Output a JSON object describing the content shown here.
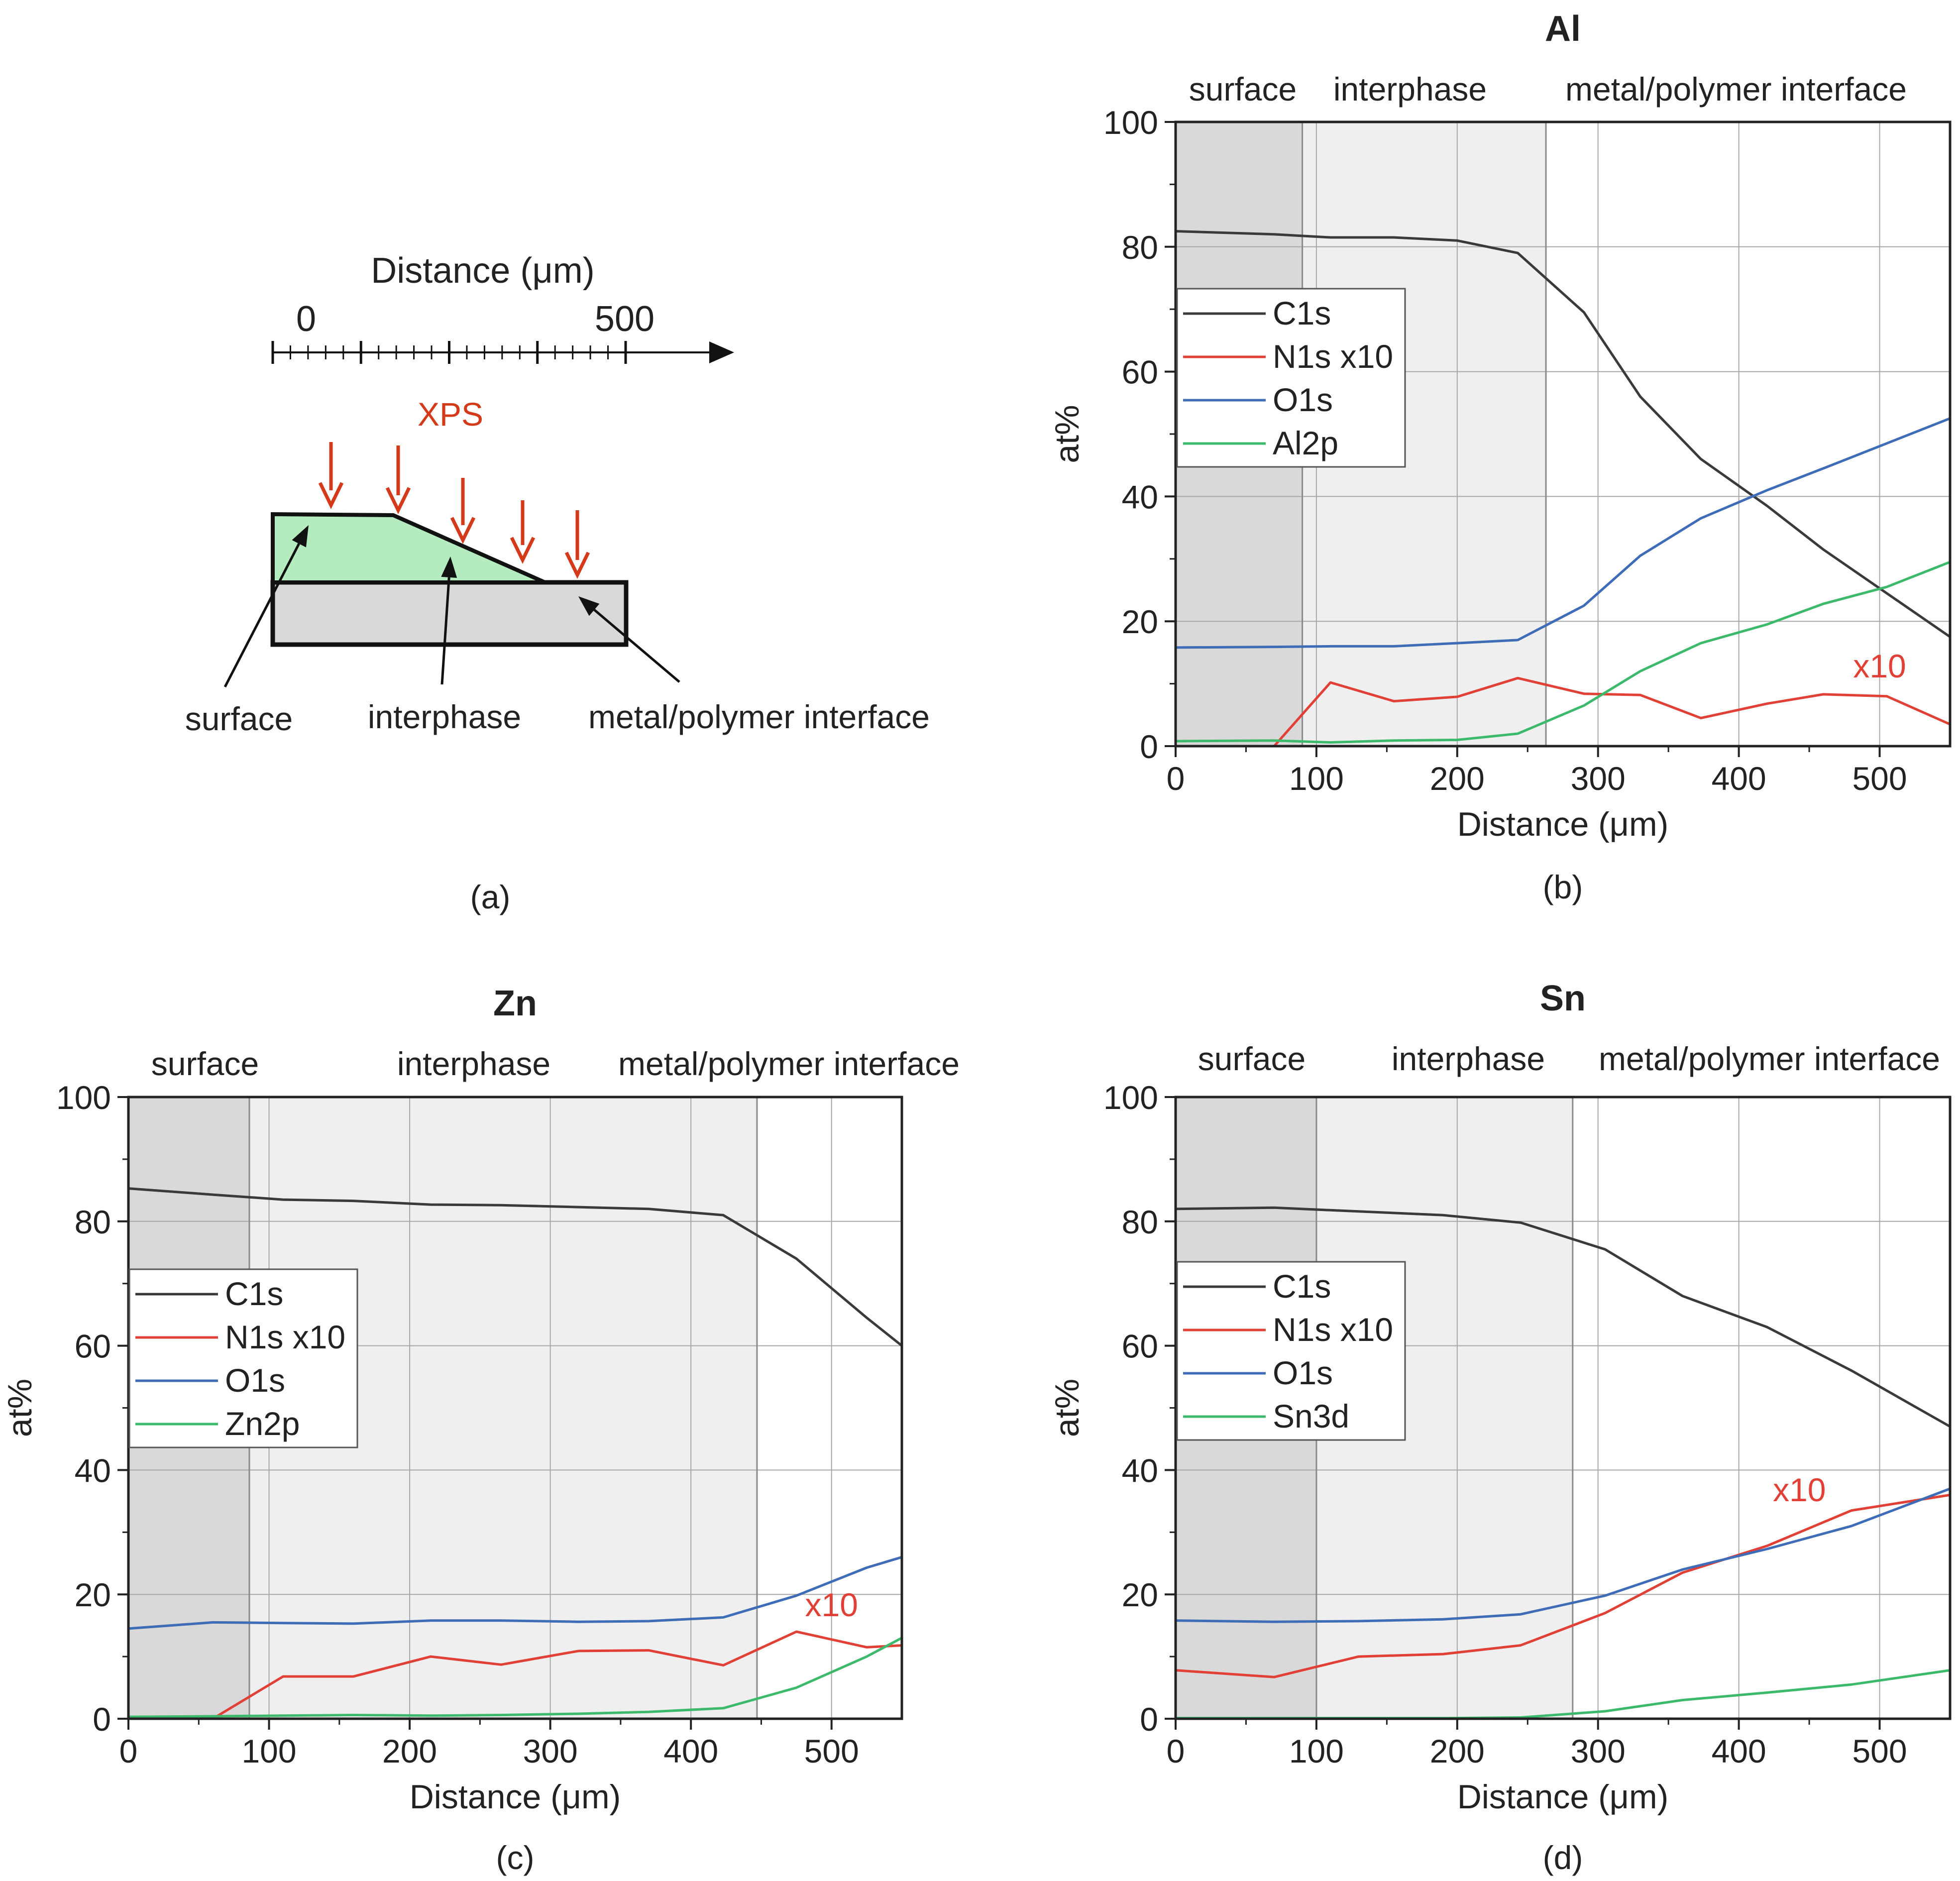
{
  "figure_a": {
    "axis_title": "Distance (μm)",
    "tick_start": "0",
    "tick_end": "500",
    "xps_label": "XPS",
    "labels": [
      "surface",
      "interphase",
      "metal/polymer interface"
    ],
    "caption": "(a)",
    "colors": {
      "polymer": "#b4ecbf",
      "metal": "#d9d9d9",
      "arrow": "#d33a1a",
      "outline": "#111111"
    }
  },
  "chart_data": [
    {
      "id": "al",
      "type": "line",
      "title": "Al",
      "caption": "(b)",
      "xlabel": "Distance (μm)",
      "ylabel": "at%",
      "xlim": [
        0,
        550
      ],
      "ylim": [
        0,
        100
      ],
      "xticks": [
        0,
        100,
        200,
        300,
        400,
        500
      ],
      "yticks": [
        0,
        20,
        40,
        60,
        80,
        100
      ],
      "grid": true,
      "regions": [
        {
          "label": "surface",
          "from": 0,
          "to": 90,
          "color": "#d9d9d9"
        },
        {
          "label": "interphase",
          "from": 90,
          "to": 263,
          "color": "#efefef"
        },
        {
          "label": "metal/polymer interface",
          "from": 263,
          "to": 550,
          "color": "#ffffff"
        }
      ],
      "annotation": {
        "text": "x10",
        "x": 500,
        "y": 11
      },
      "legend": [
        "C1s",
        "N1s x10",
        "O1s",
        "Al2p"
      ],
      "series": [
        {
          "name": "C1s",
          "color": "#3a3a3a",
          "points": [
            [
              0,
              82.5
            ],
            [
              70,
              82.0
            ],
            [
              110,
              81.5
            ],
            [
              155,
              81.5
            ],
            [
              200,
              81.0
            ],
            [
              243,
              79.0
            ],
            [
              290,
              69.5
            ],
            [
              330,
              56.0
            ],
            [
              373,
              46.0
            ],
            [
              420,
              38.5
            ],
            [
              460,
              31.5
            ],
            [
              505,
              24.5
            ],
            [
              550,
              17.5
            ]
          ]
        },
        {
          "name": "N1s x10",
          "color": "#e04035",
          "points": [
            [
              0,
              0.0
            ],
            [
              70,
              0.0
            ],
            [
              110,
              10.2
            ],
            [
              155,
              7.2
            ],
            [
              200,
              7.9
            ],
            [
              243,
              10.9
            ],
            [
              290,
              8.4
            ],
            [
              330,
              8.2
            ],
            [
              373,
              4.5
            ],
            [
              420,
              6.8
            ],
            [
              460,
              8.3
            ],
            [
              505,
              8.0
            ],
            [
              550,
              3.5
            ]
          ]
        },
        {
          "name": "O1s",
          "color": "#3f6cb7",
          "points": [
            [
              0,
              15.8
            ],
            [
              70,
              15.9
            ],
            [
              110,
              16.0
            ],
            [
              155,
              16.0
            ],
            [
              200,
              16.5
            ],
            [
              243,
              17.0
            ],
            [
              290,
              22.5
            ],
            [
              330,
              30.5
            ],
            [
              373,
              36.5
            ],
            [
              420,
              41.0
            ],
            [
              460,
              44.5
            ],
            [
              505,
              48.5
            ],
            [
              550,
              52.5
            ]
          ]
        },
        {
          "name": "Al2p",
          "color": "#3cb96a",
          "points": [
            [
              0,
              0.8
            ],
            [
              70,
              0.9
            ],
            [
              110,
              0.6
            ],
            [
              155,
              0.9
            ],
            [
              200,
              1.0
            ],
            [
              243,
              2.0
            ],
            [
              290,
              6.5
            ],
            [
              330,
              12.0
            ],
            [
              373,
              16.5
            ],
            [
              420,
              19.5
            ],
            [
              460,
              22.8
            ],
            [
              505,
              25.5
            ],
            [
              550,
              29.5
            ]
          ]
        }
      ]
    },
    {
      "id": "zn",
      "type": "line",
      "title": "Zn",
      "caption": "(c)",
      "xlabel": "Distance (μm)",
      "ylabel": "at%",
      "xlim": [
        0,
        550
      ],
      "ylim": [
        0,
        100
      ],
      "xticks": [
        0,
        100,
        200,
        300,
        400,
        500
      ],
      "yticks": [
        0,
        20,
        40,
        60,
        80,
        100
      ],
      "grid": true,
      "regions": [
        {
          "label": "surface",
          "from": 0,
          "to": 86,
          "color": "#d9d9d9"
        },
        {
          "label": "interphase",
          "from": 86,
          "to": 447,
          "color": "#efefef"
        },
        {
          "label": "metal/polymer interface",
          "from": 447,
          "to": 550,
          "color": "#ffffff"
        }
      ],
      "annotation": {
        "text": "x10",
        "x": 500,
        "y": 16.5
      },
      "legend": [
        "C1s",
        "N1s x10",
        "O1s",
        "Zn2p"
      ],
      "series": [
        {
          "name": "C1s",
          "color": "#3a3a3a",
          "points": [
            [
              0,
              85.3
            ],
            [
              60,
              84.3
            ],
            [
              110,
              83.5
            ],
            [
              160,
              83.3
            ],
            [
              215,
              82.7
            ],
            [
              265,
              82.6
            ],
            [
              320,
              82.3
            ],
            [
              370,
              82.0
            ],
            [
              423,
              81.0
            ],
            [
              475,
              74.0
            ],
            [
              525,
              64.5
            ],
            [
              550,
              60.0
            ]
          ]
        },
        {
          "name": "N1s x10",
          "color": "#e04035",
          "points": [
            [
              0,
              0.0
            ],
            [
              60,
              0.0
            ],
            [
              110,
              6.8
            ],
            [
              160,
              6.8
            ],
            [
              215,
              10.0
            ],
            [
              265,
              8.7
            ],
            [
              320,
              10.9
            ],
            [
              370,
              11.0
            ],
            [
              423,
              8.6
            ],
            [
              475,
              14.0
            ],
            [
              525,
              11.5
            ],
            [
              550,
              11.8
            ]
          ]
        },
        {
          "name": "O1s",
          "color": "#3f6cb7",
          "points": [
            [
              0,
              14.5
            ],
            [
              60,
              15.5
            ],
            [
              110,
              15.4
            ],
            [
              160,
              15.3
            ],
            [
              215,
              15.8
            ],
            [
              265,
              15.8
            ],
            [
              320,
              15.6
            ],
            [
              370,
              15.7
            ],
            [
              423,
              16.3
            ],
            [
              475,
              19.8
            ],
            [
              525,
              24.3
            ],
            [
              550,
              26.0
            ]
          ]
        },
        {
          "name": "Zn2p",
          "color": "#3cb96a",
          "points": [
            [
              0,
              0.3
            ],
            [
              60,
              0.4
            ],
            [
              110,
              0.5
            ],
            [
              160,
              0.6
            ],
            [
              215,
              0.5
            ],
            [
              265,
              0.6
            ],
            [
              320,
              0.8
            ],
            [
              370,
              1.1
            ],
            [
              423,
              1.7
            ],
            [
              475,
              5.0
            ],
            [
              525,
              10.0
            ],
            [
              550,
              13.0
            ]
          ]
        }
      ]
    },
    {
      "id": "sn",
      "type": "line",
      "title": "Sn",
      "caption": "(d)",
      "xlabel": "Distance (μm)",
      "ylabel": "at%",
      "xlim": [
        0,
        550
      ],
      "ylim": [
        0,
        100
      ],
      "xticks": [
        0,
        100,
        200,
        300,
        400,
        500
      ],
      "yticks": [
        0,
        20,
        40,
        60,
        80,
        100
      ],
      "grid": true,
      "regions": [
        {
          "label": "surface",
          "from": 0,
          "to": 100,
          "color": "#d9d9d9"
        },
        {
          "label": "interphase",
          "from": 100,
          "to": 282,
          "color": "#efefef"
        },
        {
          "label": "metal/polymer interface",
          "from": 282,
          "to": 550,
          "color": "#ffffff"
        }
      ],
      "annotation": {
        "text": "x10",
        "x": 443,
        "y": 35
      },
      "legend": [
        "C1s",
        "N1s x10",
        "O1s",
        "Sn3d"
      ],
      "series": [
        {
          "name": "C1s",
          "color": "#3a3a3a",
          "points": [
            [
              0,
              82.0
            ],
            [
              70,
              82.2
            ],
            [
              130,
              81.6
            ],
            [
              190,
              81.0
            ],
            [
              245,
              79.8
            ],
            [
              305,
              75.5
            ],
            [
              360,
              68.0
            ],
            [
              420,
              63.0
            ],
            [
              480,
              56.0
            ],
            [
              550,
              47.0
            ]
          ]
        },
        {
          "name": "N1s x10",
          "color": "#e04035",
          "points": [
            [
              0,
              7.8
            ],
            [
              70,
              6.7
            ],
            [
              130,
              10.0
            ],
            [
              190,
              10.4
            ],
            [
              245,
              11.8
            ],
            [
              305,
              17.0
            ],
            [
              360,
              23.5
            ],
            [
              420,
              27.8
            ],
            [
              480,
              33.5
            ],
            [
              550,
              36.0
            ]
          ]
        },
        {
          "name": "O1s",
          "color": "#3f6cb7",
          "points": [
            [
              0,
              15.8
            ],
            [
              70,
              15.6
            ],
            [
              130,
              15.7
            ],
            [
              190,
              16.0
            ],
            [
              245,
              16.8
            ],
            [
              305,
              19.8
            ],
            [
              360,
              24.0
            ],
            [
              420,
              27.3
            ],
            [
              480,
              31.0
            ],
            [
              550,
              37.0
            ]
          ]
        },
        {
          "name": "Sn3d",
          "color": "#3cb96a",
          "points": [
            [
              0,
              0.1
            ],
            [
              70,
              0.1
            ],
            [
              130,
              0.1
            ],
            [
              190,
              0.1
            ],
            [
              245,
              0.2
            ],
            [
              305,
              1.2
            ],
            [
              360,
              3.0
            ],
            [
              420,
              4.2
            ],
            [
              480,
              5.5
            ],
            [
              550,
              7.8
            ]
          ]
        }
      ]
    }
  ]
}
